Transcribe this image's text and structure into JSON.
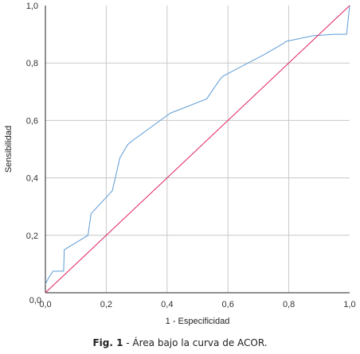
{
  "chart_data": {
    "type": "line",
    "xlabel": "1 - Especificidad",
    "ylabel": "Sensibilidad",
    "xlim": [
      0,
      1
    ],
    "ylim": [
      0,
      1
    ],
    "x_ticks": [
      "0,0",
      "0,2",
      "0,4",
      "0,6",
      "0,8",
      "1,0"
    ],
    "y_ticks": [
      "0,0",
      "0,2",
      "0,4",
      "0,6",
      "0,8",
      "1,0"
    ],
    "grid": true,
    "series": [
      {
        "color": "#5b9bd5",
        "x": [
          0.0,
          0.01,
          0.025,
          0.05,
          0.06,
          0.062,
          0.14,
          0.15,
          0.22,
          0.245,
          0.27,
          0.28,
          0.41,
          0.53,
          0.575,
          0.585,
          0.72,
          0.785,
          0.79,
          0.88,
          0.95,
          0.98,
          0.99,
          1.0
        ],
        "y": [
          0.03,
          0.05,
          0.075,
          0.075,
          0.075,
          0.15,
          0.2,
          0.275,
          0.355,
          0.47,
          0.515,
          0.525,
          0.625,
          0.675,
          0.745,
          0.755,
          0.83,
          0.87,
          0.875,
          0.895,
          0.9,
          0.9,
          0.9,
          1.0
        ]
      },
      {
        "color": "#e0205a",
        "x": [
          0,
          1
        ],
        "y": [
          0,
          1
        ]
      }
    ]
  },
  "caption": {
    "fig_label": "Fig. 1",
    "text": " - Área bajo la curva de ACOR."
  }
}
